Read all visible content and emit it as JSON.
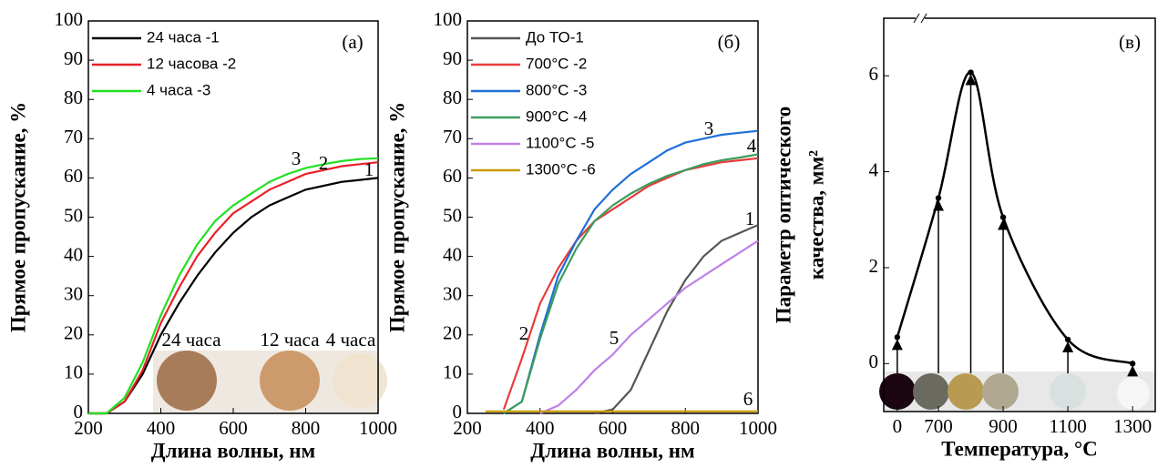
{
  "chart_data": [
    {
      "type": "line",
      "panel_label": "(а)",
      "xlabel": "Длина волны, нм",
      "ylabel": "Прямое пропускание, %",
      "x": [
        200,
        250,
        300,
        350,
        400,
        450,
        500,
        550,
        600,
        650,
        700,
        750,
        800,
        850,
        900,
        950,
        1000
      ],
      "xlim": [
        200,
        1000
      ],
      "xticks": [
        200,
        400,
        600,
        800,
        1000
      ],
      "ylim": [
        0,
        100
      ],
      "yticks": [
        0,
        10,
        20,
        30,
        40,
        50,
        60,
        70,
        80,
        90,
        100
      ],
      "series": [
        {
          "name": "24 часа -1",
          "color": "#000000",
          "values": [
            0,
            0,
            3,
            10,
            20,
            28,
            35,
            41,
            46,
            50,
            53,
            55,
            57,
            58,
            59,
            59.5,
            60
          ]
        },
        {
          "name": "12 часова -2",
          "color": "#e8202a",
          "values": [
            0,
            0,
            3,
            11,
            23,
            32,
            40,
            46,
            51,
            54,
            57,
            59,
            61,
            62,
            63,
            63.5,
            64
          ]
        },
        {
          "name": "4 часа -3",
          "color": "#22e022",
          "values": [
            0,
            0,
            4,
            13,
            25,
            35,
            43,
            49,
            53,
            56,
            59,
            61,
            62.5,
            63.5,
            64.3,
            64.8,
            65
          ]
        }
      ],
      "curve_labels": [
        "1",
        "2",
        "3"
      ],
      "photo_labels": [
        "24 часа",
        "12 часа",
        "4 часа"
      ]
    },
    {
      "type": "line",
      "panel_label": "(б)",
      "xlabel": "Длина волны, нм",
      "ylabel": "Прямое пропускание, %",
      "x": [
        200,
        250,
        300,
        350,
        400,
        450,
        500,
        550,
        600,
        650,
        700,
        750,
        800,
        850,
        900,
        950,
        1000
      ],
      "xlim": [
        200,
        1000
      ],
      "xticks": [
        200,
        400,
        600,
        800,
        1000
      ],
      "ylim": [
        0,
        100
      ],
      "yticks": [
        0,
        10,
        20,
        30,
        40,
        50,
        60,
        70,
        80,
        90,
        100
      ],
      "series": [
        {
          "name": "До ТО-1",
          "color": "#555555",
          "values": [
            null,
            null,
            null,
            null,
            null,
            null,
            null,
            0,
            1,
            6,
            16,
            26,
            34,
            40,
            44,
            46,
            48
          ]
        },
        {
          "name": "700°C -2",
          "color": "#e83c3c",
          "values": [
            null,
            null,
            1,
            14,
            28,
            37,
            44,
            49,
            52,
            55,
            58,
            60,
            62,
            63,
            64,
            64.5,
            65
          ]
        },
        {
          "name": "800°C -3",
          "color": "#1e6fd9",
          "values": [
            null,
            null,
            0,
            3,
            20,
            35,
            44,
            52,
            57,
            61,
            64,
            67,
            69,
            70,
            71,
            71.5,
            72
          ]
        },
        {
          "name": "900°C -4",
          "color": "#3c9c5c",
          "values": [
            null,
            null,
            0,
            3,
            19,
            33,
            42,
            49,
            53,
            56,
            58.5,
            60.5,
            62,
            63.5,
            64.5,
            65.2,
            66
          ]
        },
        {
          "name": "1100°C -5",
          "color": "#c080e8",
          "values": [
            null,
            null,
            null,
            null,
            0,
            2,
            6,
            11,
            15,
            20,
            24,
            28,
            32,
            35,
            38,
            41,
            44
          ]
        },
        {
          "name": "1300°C -6",
          "color": "#c89b00",
          "values": [
            null,
            0.5,
            0.5,
            0.5,
            0.5,
            0.5,
            0.5,
            0.5,
            0.5,
            0.5,
            0.5,
            0.5,
            0.5,
            0.5,
            0.5,
            0.5,
            0.5
          ]
        }
      ],
      "curve_labels": [
        "1",
        "2",
        "3",
        "4",
        "5",
        "6"
      ]
    },
    {
      "type": "curve",
      "panel_label": "(в)",
      "xlabel": "Температура, °C",
      "ylabel": [
        "Параметр оптического",
        "качества, мм²"
      ],
      "x": [
        0,
        700,
        800,
        900,
        1100,
        1300
      ],
      "values": [
        0.55,
        3.45,
        6.07,
        3.05,
        0.5,
        0.0
      ],
      "color": "#000000",
      "x_break": true,
      "xlim": [
        -230,
        1370
      ],
      "xticks": [
        0,
        700,
        900,
        1100,
        1300
      ],
      "ylim": [
        -1,
        7.2
      ],
      "yticks": [
        0,
        2,
        4,
        6
      ]
    }
  ]
}
